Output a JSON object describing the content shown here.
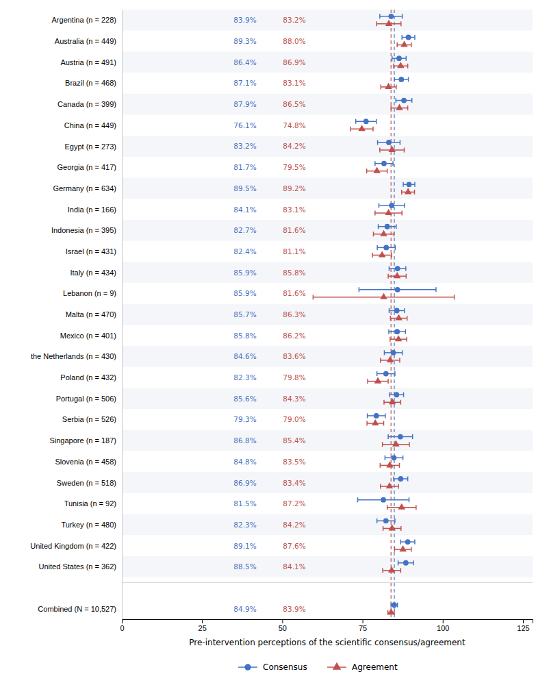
{
  "chart_data": {
    "type": "dot",
    "orientation": "horizontal",
    "xlabel": "Pre-intervention perceptions of the scientific consensus/agreement",
    "categories": [
      "Argentina (n = 228)",
      "Australia (n = 449)",
      "Austria (n = 491)",
      "Brazil (n = 468)",
      "Canada (n = 399)",
      "China (n = 449)",
      "Egypt (n = 273)",
      "Georgia (n = 417)",
      "Germany (n = 634)",
      "India (n = 166)",
      "Indonesia (n = 395)",
      "Israel (n = 431)",
      "Italy (n = 434)",
      "Lebanon (n = 9)",
      "Malta (n = 470)",
      "Mexico (n = 401)",
      "the Netherlands (n = 430)",
      "Poland (n = 432)",
      "Portugal (n = 506)",
      "Serbia (n = 526)",
      "Singapore (n = 187)",
      "Slovenia (n = 458)",
      "Sweden (n = 518)",
      "Tunisia (n = 92)",
      "Turkey (n = 480)",
      "United Kingdom (n = 422)",
      "United States (n = 362)",
      "Combined (N = 10,527)"
    ],
    "series": [
      {
        "name": "Consensus",
        "color": "#4472C4",
        "marker": "circle",
        "reference_line": 84.9,
        "values": [
          83.9,
          89.3,
          86.4,
          87.1,
          87.9,
          76.1,
          83.2,
          81.7,
          89.5,
          84.1,
          82.7,
          82.4,
          85.9,
          85.9,
          85.7,
          85.8,
          84.6,
          82.3,
          85.6,
          79.3,
          86.8,
          84.8,
          86.9,
          81.5,
          82.3,
          89.1,
          88.5,
          84.9
        ],
        "errors": [
          3.5,
          2.0,
          2.2,
          2.2,
          2.5,
          3.2,
          3.5,
          2.8,
          1.8,
          4.0,
          2.8,
          2.8,
          2.6,
          12.0,
          2.4,
          2.6,
          2.8,
          2.8,
          2.2,
          2.8,
          3.8,
          2.8,
          2.2,
          8.0,
          2.8,
          2.2,
          2.4,
          1.0
        ],
        "value_labels": [
          "83.9%",
          "89.3%",
          "86.4%",
          "87.1%",
          "87.9%",
          "76.1%",
          "83.2%",
          "81.7%",
          "89.5%",
          "84.1%",
          "82.7%",
          "82.4%",
          "85.9%",
          "85.9%",
          "85.7%",
          "85.8%",
          "84.6%",
          "82.3%",
          "85.6%",
          "79.3%",
          "86.8%",
          "84.8%",
          "86.9%",
          "81.5%",
          "82.3%",
          "89.1%",
          "88.5%",
          "84.9%"
        ]
      },
      {
        "name": "Agreement",
        "color": "#C0504D",
        "marker": "triangle",
        "reference_line": 83.9,
        "values": [
          83.2,
          88.0,
          86.9,
          83.1,
          86.5,
          74.8,
          84.2,
          79.5,
          89.2,
          83.1,
          81.6,
          81.1,
          85.8,
          81.6,
          86.3,
          86.2,
          83.6,
          79.8,
          84.3,
          79.0,
          85.4,
          83.5,
          83.4,
          87.2,
          84.2,
          87.6,
          84.1,
          83.9
        ],
        "errors": [
          3.8,
          2.2,
          2.2,
          2.4,
          2.6,
          3.5,
          3.8,
          3.2,
          2.0,
          4.2,
          3.2,
          3.0,
          2.8,
          22.0,
          2.6,
          2.6,
          3.0,
          3.2,
          2.6,
          2.6,
          4.2,
          3.0,
          2.8,
          4.5,
          2.8,
          2.6,
          2.8,
          1.0
        ],
        "value_labels": [
          "83.2%",
          "88.0%",
          "86.9%",
          "83.1%",
          "86.5%",
          "74.8%",
          "84.2%",
          "79.5%",
          "89.2%",
          "83.1%",
          "81.6%",
          "81.1%",
          "85.8%",
          "81.6%",
          "86.3%",
          "86.2%",
          "83.6%",
          "79.8%",
          "84.3%",
          "79.0%",
          "85.4%",
          "83.5%",
          "83.4%",
          "87.2%",
          "84.2%",
          "87.6%",
          "84.1%",
          "83.9%"
        ]
      }
    ],
    "xlim": [
      0,
      128
    ],
    "xticks": [
      0,
      25,
      50,
      75,
      100,
      125
    ],
    "data_labels": true,
    "grid": false,
    "legend": "bottom"
  }
}
